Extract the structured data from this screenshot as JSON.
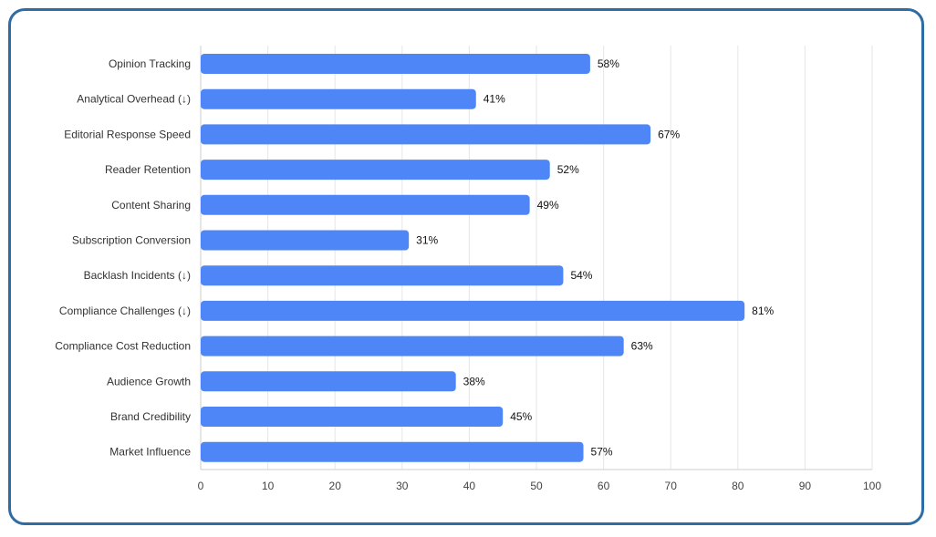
{
  "chart_data": {
    "type": "bar",
    "orientation": "horizontal",
    "title": "",
    "xlabel": "",
    "ylabel": "",
    "xlim": [
      0,
      100
    ],
    "x_ticks": [
      0,
      10,
      20,
      30,
      40,
      50,
      60,
      70,
      80,
      90,
      100
    ],
    "grid": true,
    "legend": "none",
    "bar_color": "#4F86F7",
    "value_suffix": "%",
    "categories": [
      "Opinion Tracking",
      "Analytical Overhead (↓)",
      "Editorial Response Speed",
      "Reader Retention",
      "Content Sharing",
      "Subscription Conversion",
      "Backlash Incidents (↓)",
      "Compliance Challenges (↓)",
      "Compliance Cost Reduction",
      "Audience Growth",
      "Brand Credibility",
      "Market Influence"
    ],
    "values": [
      58,
      41,
      67,
      52,
      49,
      31,
      54,
      81,
      63,
      38,
      45,
      57
    ],
    "value_labels": [
      "58%",
      "41%",
      "67%",
      "52%",
      "49%",
      "31%",
      "54%",
      "81%",
      "63%",
      "38%",
      "45%",
      "57%"
    ]
  }
}
